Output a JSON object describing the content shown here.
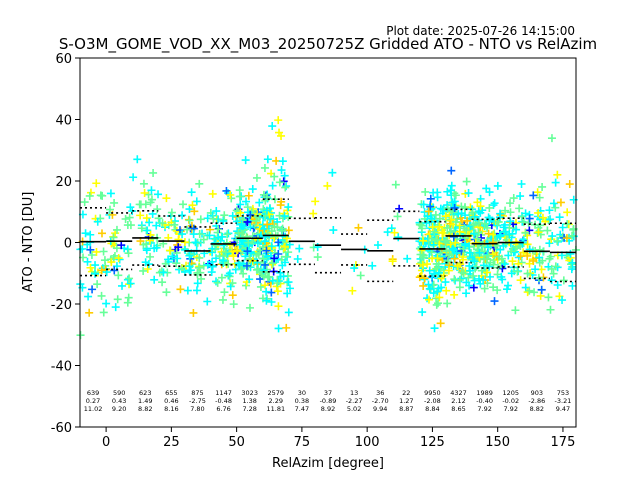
{
  "chart_data": {
    "type": "scatter",
    "plot_date": "Plot date: 2025-07-26 14:15:00",
    "title": "S-O3M_GOME_VOD_XX_M03_20250725Z Gridded ATO - NTO vs RelAzim",
    "xlabel": "RelAzim [degree]",
    "ylabel": "ATO - NTO [DU]",
    "xlim": [
      -10,
      180
    ],
    "ylim": [
      -60,
      60
    ],
    "xticks": [
      0,
      25,
      50,
      75,
      100,
      125,
      150,
      175
    ],
    "yticks": [
      -60,
      -40,
      -20,
      0,
      20,
      40,
      60
    ],
    "grid": false,
    "colormap_colors": [
      "#00ffff",
      "#66ff99",
      "#ffff00",
      "#ffcc00",
      "#0066ff",
      "#0000ff"
    ],
    "bins": [
      {
        "x": -5,
        "count": "639",
        "mean": 0.27,
        "std": 11.02
      },
      {
        "x": 5,
        "count": "590",
        "mean": 0.43,
        "std": 9.2
      },
      {
        "x": 15,
        "count": "623",
        "mean": 1.49,
        "std": 8.82
      },
      {
        "x": 25,
        "count": "655",
        "mean": 0.46,
        "std": 8.16
      },
      {
        "x": 35,
        "count": "875",
        "mean": -2.75,
        "std": 7.8
      },
      {
        "x": 45,
        "count": "1147",
        "mean": -0.48,
        "std": 6.76
      },
      {
        "x": 55,
        "count": "3023",
        "mean": 1.38,
        "std": 7.28
      },
      {
        "x": 65,
        "count": "2579",
        "mean": 2.29,
        "std": 11.81
      },
      {
        "x": 75,
        "count": "30",
        "mean": 0.38,
        "std": 7.47
      },
      {
        "x": 85,
        "count": "37",
        "mean": -0.89,
        "std": 8.92
      },
      {
        "x": 95,
        "count": "13",
        "mean": -2.27,
        "std": 5.02
      },
      {
        "x": 105,
        "count": "36",
        "mean": -2.7,
        "std": 9.94
      },
      {
        "x": 115,
        "count": "22",
        "mean": 1.27,
        "std": 8.87
      },
      {
        "x": 125,
        "count": "9950",
        "mean": -2.08,
        "std": 8.84
      },
      {
        "x": 135,
        "count": "4327",
        "mean": 2.12,
        "std": 8.65
      },
      {
        "x": 145,
        "count": "1989",
        "mean": -0.4,
        "std": 7.92
      },
      {
        "x": 155,
        "count": "1205",
        "mean": -0.02,
        "std": 7.92
      },
      {
        "x": 165,
        "count": "903",
        "mean": -2.86,
        "std": 8.82
      },
      {
        "x": 175,
        "count": "753",
        "mean": -3.21,
        "std": 9.47
      }
    ]
  }
}
